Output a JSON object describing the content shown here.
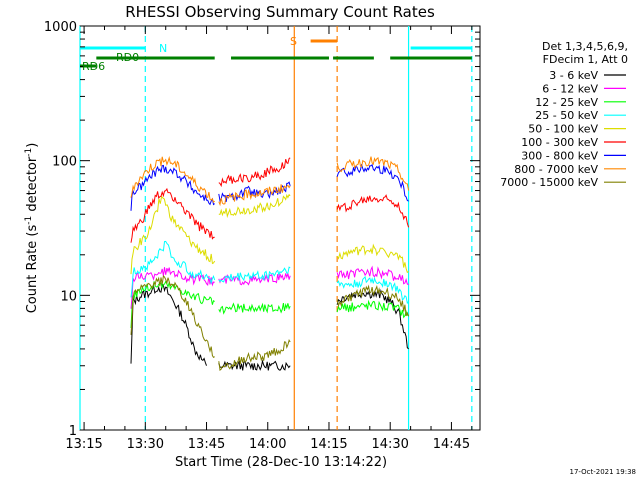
{
  "chart_data": {
    "type": "line",
    "title": "RHESSI Observing Summary Count Rates",
    "xlabel": "Start Time (28-Dec-10 13:14:22)",
    "ylabel_main": "Count Rate (s",
    "ylabel_sup1": "-1",
    "ylabel_mid": " detector",
    "ylabel_sup2": "-1",
    "ylabel_end": ")",
    "yscale": "log",
    "ylim": [
      1,
      1000
    ],
    "xlim_minutes": [
      -1,
      65
    ],
    "x_ticks": [
      {
        "m": 0,
        "label": "13:15"
      },
      {
        "m": 15,
        "label": "13:30"
      },
      {
        "m": 30,
        "label": "13:45"
      },
      {
        "m": 45,
        "label": "14:00"
      },
      {
        "m": 60,
        "label": "14:15"
      },
      {
        "m": 75,
        "label": "14:30"
      },
      {
        "m": 90,
        "label": "14:45"
      }
    ],
    "y_ticks": [
      {
        "v": 1,
        "label": "1"
      },
      {
        "v": 10,
        "label": "10"
      },
      {
        "v": 100,
        "label": "100"
      },
      {
        "v": 1000,
        "label": "1000"
      }
    ],
    "legend_header": [
      "Det 1,3,4,5,6,9,",
      "FDecim 1, Att 0"
    ],
    "timestamp": "17-Oct-2021 19:38",
    "series": [
      {
        "name": "3 - 6 keV",
        "color": "#000000",
        "x": [
          11.5,
          12,
          14,
          16,
          17,
          18,
          20,
          22,
          24,
          26,
          27,
          30,
          33,
          36,
          38,
          40,
          42,
          44,
          46,
          48,
          49.5,
          50.5,
          62,
          63,
          65,
          67,
          69,
          71,
          73,
          75,
          77,
          78,
          79.5
        ],
        "y": [
          3,
          9,
          10,
          10.5,
          11,
          11.5,
          11,
          9,
          7,
          5,
          4,
          3,
          3,
          3,
          3,
          3,
          3,
          3,
          3,
          3,
          3,
          3,
          9,
          9.5,
          10,
          10.3,
          10.5,
          10.2,
          10,
          9,
          7.5,
          6,
          4
        ]
      },
      {
        "name": "6 - 12 keV",
        "color": "#ff00ff",
        "x": [
          11.5,
          12,
          14,
          17,
          18,
          20,
          22,
          24,
          26,
          28,
          30,
          32,
          33,
          36,
          40,
          44,
          48,
          50.5,
          62,
          63,
          66,
          70,
          74,
          77,
          78,
          79.5
        ],
        "y": [
          8,
          13,
          14,
          14,
          15,
          15,
          15,
          14,
          13,
          13,
          13,
          12.5,
          13,
          13,
          13,
          13,
          13.5,
          14,
          14,
          14,
          14.5,
          15,
          14.5,
          13.5,
          13,
          12
        ]
      },
      {
        "name": "12 - 25 keV",
        "color": "#00ff00",
        "x": [
          11.5,
          12,
          14,
          16,
          18,
          20,
          22,
          24,
          26,
          28,
          30,
          32,
          33,
          36,
          40,
          44,
          48,
          50.5,
          62,
          63,
          66,
          70,
          74,
          77,
          78,
          79.5
        ],
        "y": [
          6,
          10,
          11,
          11.5,
          12,
          12,
          11.5,
          11,
          10,
          9.5,
          9,
          9,
          7.5,
          8,
          8,
          8,
          8,
          8.3,
          8,
          8,
          8.2,
          8.5,
          8.3,
          8,
          7.5,
          7
        ]
      },
      {
        "name": "25 - 50 keV",
        "color": "#00ffff",
        "x": [
          11.5,
          12,
          14,
          16,
          18,
          20,
          21,
          22,
          24,
          26,
          28,
          30,
          32,
          33,
          36,
          40,
          44,
          48,
          50.5,
          62,
          63,
          66,
          70,
          74,
          77,
          78,
          79.5
        ],
        "y": [
          9,
          15,
          16,
          17,
          20,
          24,
          22,
          18,
          17,
          15,
          14,
          14,
          13,
          13,
          13.5,
          14,
          14,
          15,
          16,
          12,
          12,
          12,
          13,
          12.5,
          11,
          10,
          9
        ]
      },
      {
        "name": "50 - 100 keV",
        "color": "#dddd00",
        "x": [
          11.5,
          12,
          14,
          16,
          18,
          19,
          20,
          21,
          22,
          24,
          26,
          28,
          30,
          32,
          33,
          36,
          40,
          44,
          48,
          50.5,
          62,
          63,
          66,
          70,
          74,
          77,
          78,
          79.5
        ],
        "y": [
          14,
          22,
          25,
          30,
          45,
          55,
          48,
          40,
          35,
          30,
          25,
          22,
          20,
          18,
          40,
          42,
          43,
          45,
          50,
          55,
          20,
          20,
          21,
          22,
          21,
          20,
          18,
          15
        ]
      },
      {
        "name": "100 - 300 keV",
        "color": "#ff0000",
        "x": [
          11.5,
          12,
          14,
          16,
          18,
          20,
          22,
          24,
          26,
          28,
          30,
          32,
          33,
          36,
          40,
          44,
          48,
          50.5,
          62,
          63,
          66,
          70,
          74,
          77,
          78,
          79.5
        ],
        "y": [
          25,
          30,
          35,
          45,
          55,
          58,
          54,
          45,
          38,
          33,
          30,
          27,
          70,
          72,
          75,
          80,
          90,
          105,
          44,
          44,
          48,
          52,
          52,
          48,
          42,
          32
        ]
      },
      {
        "name": "300 - 800 keV",
        "color": "#0000ff",
        "x": [
          11.5,
          12,
          14,
          16,
          18,
          20,
          22,
          24,
          26,
          28,
          30,
          32,
          33,
          36,
          40,
          44,
          48,
          50.5,
          62,
          63,
          66,
          70,
          74,
          77,
          78,
          79.5
        ],
        "y": [
          45,
          58,
          65,
          75,
          85,
          88,
          84,
          75,
          65,
          57,
          52,
          48,
          53,
          53,
          60,
          55,
          60,
          65,
          80,
          80,
          85,
          90,
          85,
          75,
          65,
          50
        ]
      },
      {
        "name": "800 - 7000 keV",
        "color": "#ff8800",
        "x": [
          11.5,
          12,
          14,
          16,
          18,
          20,
          22,
          24,
          26,
          28,
          30,
          32,
          33,
          36,
          40,
          44,
          48,
          50.5,
          62,
          63,
          66,
          70,
          74,
          77,
          78,
          79.5
        ],
        "y": [
          50,
          65,
          75,
          88,
          97,
          100,
          96,
          85,
          74,
          65,
          58,
          50,
          50,
          53,
          56,
          58,
          62,
          65,
          90,
          90,
          95,
          100,
          96,
          85,
          75,
          60
        ]
      },
      {
        "name": "7000 - 15000 keV",
        "color": "#808000",
        "x": [
          11.5,
          12,
          14,
          16,
          18,
          20,
          22,
          24,
          26,
          28,
          30,
          32,
          33,
          36,
          40,
          44,
          48,
          50.5,
          62,
          63,
          66,
          70,
          74,
          77,
          78,
          79.5
        ],
        "y": [
          5,
          10,
          11,
          12,
          12.5,
          13,
          12,
          10,
          8,
          6,
          4.5,
          3.5,
          3,
          3,
          3.5,
          3.5,
          4,
          4.5,
          9,
          9,
          10,
          11,
          10.5,
          9.5,
          8.5,
          7
        ]
      }
    ],
    "gaps_minutes": [
      [
        32,
        33
      ],
      [
        50.5,
        62
      ]
    ],
    "annotations": [
      {
        "text": "N",
        "color": "#00ffff"
      },
      {
        "text": "S",
        "color": "#ff8000"
      },
      {
        "text": "RD0",
        "color": "#008000"
      },
      {
        "text": "RD6",
        "color": "#008000"
      }
    ],
    "status_bars": {
      "N": [
        [
          -1,
          15
        ]
      ],
      "N2": [
        [
          80,
          95
        ]
      ],
      "S": [
        [
          55.5,
          62
        ]
      ],
      "RD0": [
        [
          3,
          32
        ],
        [
          36,
          60
        ],
        [
          61,
          71
        ],
        [
          75,
          95
        ]
      ],
      "RD6": [
        [
          -1,
          3
        ]
      ]
    },
    "vertical_lines": [
      {
        "m": -1,
        "color": "#00ffff",
        "style": "solid"
      },
      {
        "m": 15,
        "color": "#00ffff",
        "style": "dashed"
      },
      {
        "m": 51.5,
        "color": "#ff8000",
        "style": "solid"
      },
      {
        "m": 62,
        "color": "#ff8000",
        "style": "dashed"
      },
      {
        "m": 79.5,
        "color": "#00ffff",
        "style": "solid"
      },
      {
        "m": 95,
        "color": "#00ffff",
        "style": "dashed"
      }
    ]
  }
}
